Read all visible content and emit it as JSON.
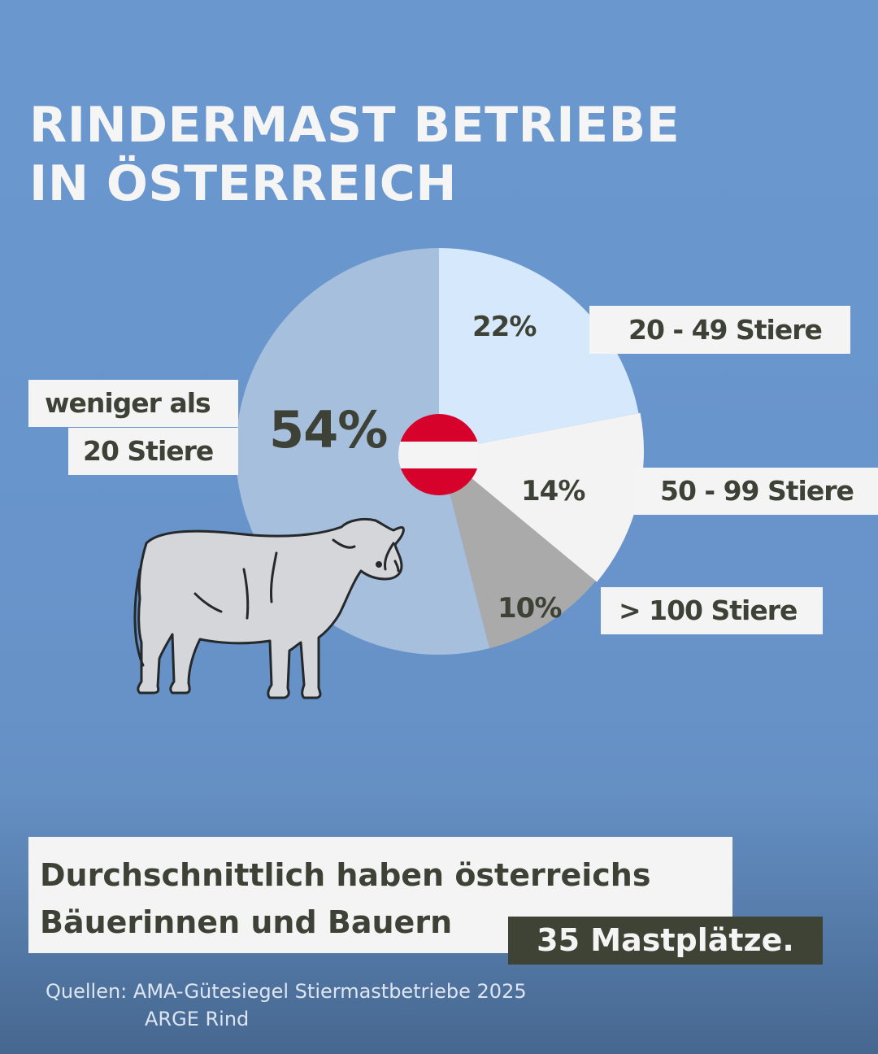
{
  "title": {
    "line1": "RINDERMAST BETRIEBE",
    "line2": "IN ÖSTERREICH"
  },
  "chart_data": {
    "type": "pie",
    "slices": [
      {
        "label": "20 - 49 Stiere",
        "value": 22,
        "display": "22%",
        "color": "#d6e8fb"
      },
      {
        "label": "50 - 99 Stiere",
        "value": 14,
        "display": "14%",
        "color": "#f3f3f3"
      },
      {
        "label": "> 100 Stiere",
        "value": 10,
        "display": "10%",
        "color": "#aaaaaa"
      },
      {
        "label_line1": "weniger als",
        "label_line2": "20 Stiere",
        "value": 54,
        "display": "54%",
        "color": "#a6bfdc"
      }
    ],
    "center_icon": "austria-flag-icon",
    "flag_colors": [
      "#d7022b",
      "#f4f4f4",
      "#d7022b"
    ]
  },
  "decor": {
    "illustration": "cow-icon"
  },
  "note": {
    "line1": "Durchschnittlich haben österreichs",
    "line2": "Bäuerinnen und Bauern",
    "highlight": "35 Mastplätze."
  },
  "source": {
    "line1": "Quellen: AMA-Gütesiegel Stiermastbetriebe 2025",
    "line2": "ARGE Rind"
  }
}
